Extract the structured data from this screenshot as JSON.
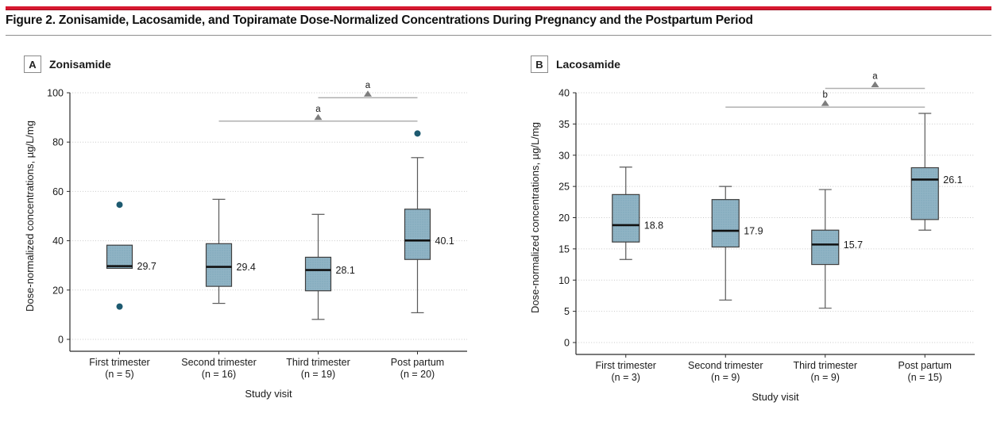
{
  "figure": {
    "title": "Figure 2. Zonisamide, Lacosamide, and Topiramate Dose-Normalized Concentrations During Pregnancy and the Postpartum Period"
  },
  "colors": {
    "red_rule": "#d7182f",
    "box_fill": "#8fb3c4",
    "box_dot_texture": "#7aa4b8",
    "box_border": "#3f3f3f",
    "median_line": "#111111",
    "whisker": "#5a5a5a",
    "outlier_dot": "#1d5a70",
    "bracket_line": "#b0b0b0",
    "bracket_triangle": "#7d7d7d",
    "grid_line": "#c9c9c9",
    "axis_line": "#2b2b2b",
    "text": "#1a1a1a"
  },
  "chart_data": [
    {
      "type": "boxplot",
      "panel_label": "A",
      "panel_title": "Zonisamide",
      "xlabel": "Study visit",
      "ylabel": "Dose-normalized concentrations, µg/L/mg",
      "ylim": [
        0,
        100
      ],
      "yticks": [
        0,
        20,
        40,
        60,
        80,
        100
      ],
      "grid": "horizontal-dotted",
      "legend": "none",
      "categories": [
        {
          "label": "First trimester",
          "n_label": "(n = 5)"
        },
        {
          "label": "Second trimester",
          "n_label": "(n = 16)"
        },
        {
          "label": "Third trimester",
          "n_label": "(n = 19)"
        },
        {
          "label": "Post partum",
          "n_label": "(n = 20)"
        }
      ],
      "boxes": [
        {
          "category": "First trimester",
          "whisker_low": null,
          "q1": 28.8,
          "median": 29.7,
          "q3": 38.2,
          "whisker_high": null,
          "outliers": [
            13.3,
            54.6
          ],
          "median_label": "29.7"
        },
        {
          "category": "Second trimester",
          "whisker_low": 14.6,
          "q1": 21.5,
          "median": 29.4,
          "q3": 38.8,
          "whisker_high": 56.8,
          "outliers": [],
          "median_label": "29.4"
        },
        {
          "category": "Third trimester",
          "whisker_low": 8.1,
          "q1": 19.7,
          "median": 28.1,
          "q3": 33.3,
          "whisker_high": 50.7,
          "outliers": [],
          "median_label": "28.1"
        },
        {
          "category": "Post partum",
          "whisker_low": 10.8,
          "q1": 32.4,
          "median": 40.1,
          "q3": 52.8,
          "whisker_high": 73.7,
          "outliers": [
            83.5
          ],
          "median_label": "40.1"
        }
      ],
      "significance_brackets": [
        {
          "from_category": "Second trimester",
          "to_category": "Post partum",
          "y": 88.5,
          "label": "a"
        },
        {
          "from_category": "Third trimester",
          "to_category": "Post partum",
          "y": 98.0,
          "label": "a"
        }
      ]
    },
    {
      "type": "boxplot",
      "panel_label": "B",
      "panel_title": "Lacosamide",
      "xlabel": "Study visit",
      "ylabel": "Dose-normalized concentrations, µg/L/mg",
      "ylim": [
        0,
        40
      ],
      "yticks": [
        0,
        5,
        10,
        15,
        20,
        25,
        30,
        35,
        40
      ],
      "grid": "horizontal-dotted",
      "legend": "none",
      "categories": [
        {
          "label": "First trimester",
          "n_label": "(n = 3)"
        },
        {
          "label": "Second trimester",
          "n_label": "(n = 9)"
        },
        {
          "label": "Third trimester",
          "n_label": "(n = 9)"
        },
        {
          "label": "Post partum",
          "n_label": "(n = 15)"
        }
      ],
      "boxes": [
        {
          "category": "First trimester",
          "whisker_low": 13.3,
          "q1": 16.1,
          "median": 18.8,
          "q3": 23.7,
          "whisker_high": 28.1,
          "outliers": [],
          "median_label": "18.8"
        },
        {
          "category": "Second trimester",
          "whisker_low": 6.8,
          "q1": 15.3,
          "median": 17.9,
          "q3": 22.9,
          "whisker_high": 25.0,
          "outliers": [],
          "median_label": "17.9"
        },
        {
          "category": "Third trimester",
          "whisker_low": 5.5,
          "q1": 12.5,
          "median": 15.7,
          "q3": 18.0,
          "whisker_high": 24.5,
          "outliers": [],
          "median_label": "15.7"
        },
        {
          "category": "Post partum",
          "whisker_low": 18.0,
          "q1": 19.7,
          "median": 26.1,
          "q3": 28.0,
          "whisker_high": 36.7,
          "outliers": [],
          "median_label": "26.1"
        }
      ],
      "significance_brackets": [
        {
          "from_category": "Second trimester",
          "to_category": "Post partum",
          "y": 37.7,
          "label": "b"
        },
        {
          "from_category": "Third trimester",
          "to_category": "Post partum",
          "y": 40.7,
          "label": "a"
        }
      ]
    }
  ]
}
